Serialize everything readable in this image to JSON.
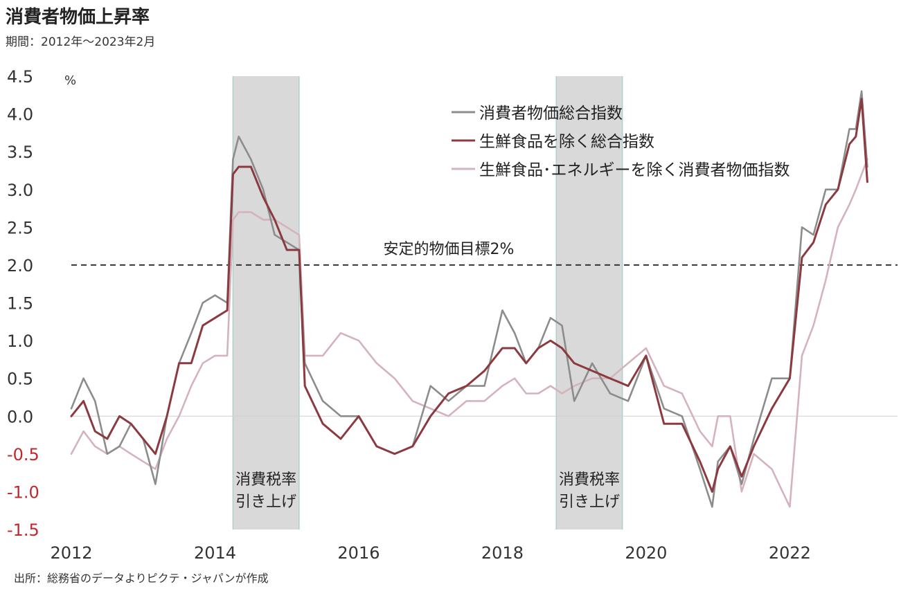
{
  "title": "消費者物価上昇率",
  "subtitle": "期間：2012年～2023年2月",
  "source": "出所：総務省のデータよりピクテ・ジャパンが作成",
  "chart_data": {
    "type": "line",
    "yunit": "%",
    "ylim": [
      -1.5,
      4.5
    ],
    "yticks": [
      "4.5",
      "4.0",
      "3.5",
      "3.0",
      "2.5",
      "2.0",
      "1.5",
      "1.0",
      "0.5",
      "0.0",
      "-0.5",
      "-1.0",
      "-1.5"
    ],
    "xlim": [
      2012,
      2023.5
    ],
    "xticks": [
      "2012",
      "2014",
      "2016",
      "2018",
      "2020",
      "2022"
    ],
    "grid": false,
    "legend_position": "top-right",
    "target_line": {
      "value": 2.0,
      "label": "安定的物価目標2%"
    },
    "shaded_periods": [
      {
        "start": 2014.25,
        "end": 2015.17,
        "label_line1": "消費税率",
        "label_line2": "引き上げ"
      },
      {
        "start": 2018.75,
        "end": 2019.67,
        "label_line1": "消費税率",
        "label_line2": "引き上げ"
      }
    ],
    "colors": {
      "headline": "#8c8c8c",
      "core": "#8b3a3f",
      "core_core": "#d4b3bd",
      "negative_tick": "#c0282d",
      "shade": "#d9d9d9",
      "shade_edge": "#aecfcf"
    },
    "series": [
      {
        "name": "消費者物価総合指数",
        "key": "headline",
        "x": [
          2012.0,
          2012.17,
          2012.33,
          2012.5,
          2012.67,
          2012.83,
          2013.0,
          2013.17,
          2013.33,
          2013.5,
          2013.67,
          2013.83,
          2014.0,
          2014.17,
          2014.25,
          2014.33,
          2014.5,
          2014.67,
          2014.83,
          2015.0,
          2015.17,
          2015.25,
          2015.5,
          2015.75,
          2016.0,
          2016.25,
          2016.5,
          2016.75,
          2017.0,
          2017.25,
          2017.5,
          2017.75,
          2018.0,
          2018.17,
          2018.33,
          2018.5,
          2018.67,
          2018.83,
          2019.0,
          2019.25,
          2019.5,
          2019.75,
          2020.0,
          2020.25,
          2020.5,
          2020.75,
          2020.92,
          2021.0,
          2021.17,
          2021.33,
          2021.5,
          2021.75,
          2022.0,
          2022.17,
          2022.33,
          2022.5,
          2022.67,
          2022.83,
          2022.92,
          2023.0,
          2023.08
        ],
        "values": [
          0.1,
          0.5,
          0.2,
          -0.5,
          -0.4,
          -0.1,
          -0.3,
          -0.9,
          0.0,
          0.7,
          1.1,
          1.5,
          1.6,
          1.5,
          3.4,
          3.7,
          3.4,
          3.0,
          2.4,
          2.3,
          2.2,
          0.7,
          0.2,
          0.0,
          0.0,
          -0.4,
          -0.5,
          -0.4,
          0.4,
          0.2,
          0.4,
          0.4,
          1.4,
          1.1,
          0.7,
          0.9,
          1.3,
          1.2,
          0.2,
          0.7,
          0.3,
          0.2,
          0.8,
          0.1,
          0.0,
          -0.7,
          -1.2,
          -0.6,
          -0.4,
          -0.9,
          -0.3,
          0.5,
          0.5,
          2.5,
          2.4,
          3.0,
          3.0,
          3.8,
          3.8,
          4.3,
          3.3
        ]
      },
      {
        "name": "生鮮食品を除く総合指数",
        "key": "core",
        "x": [
          2012.0,
          2012.17,
          2012.33,
          2012.5,
          2012.67,
          2012.83,
          2013.0,
          2013.17,
          2013.33,
          2013.5,
          2013.67,
          2013.83,
          2014.0,
          2014.17,
          2014.25,
          2014.33,
          2014.5,
          2014.67,
          2014.83,
          2015.0,
          2015.17,
          2015.25,
          2015.5,
          2015.75,
          2016.0,
          2016.25,
          2016.5,
          2016.75,
          2017.0,
          2017.25,
          2017.5,
          2017.75,
          2018.0,
          2018.17,
          2018.33,
          2018.5,
          2018.67,
          2018.83,
          2019.0,
          2019.25,
          2019.5,
          2019.75,
          2020.0,
          2020.25,
          2020.5,
          2020.75,
          2020.92,
          2021.0,
          2021.17,
          2021.33,
          2021.5,
          2021.75,
          2022.0,
          2022.17,
          2022.33,
          2022.5,
          2022.67,
          2022.83,
          2022.92,
          2023.0,
          2023.08
        ],
        "values": [
          0.0,
          0.2,
          -0.2,
          -0.3,
          0.0,
          -0.1,
          -0.3,
          -0.5,
          0.0,
          0.7,
          0.7,
          1.2,
          1.3,
          1.4,
          3.2,
          3.3,
          3.3,
          2.9,
          2.6,
          2.2,
          2.2,
          0.4,
          -0.1,
          -0.3,
          0.0,
          -0.4,
          -0.5,
          -0.4,
          0.0,
          0.3,
          0.4,
          0.6,
          0.9,
          0.9,
          0.7,
          0.9,
          1.0,
          0.9,
          0.7,
          0.6,
          0.5,
          0.4,
          0.8,
          -0.1,
          -0.1,
          -0.6,
          -1.0,
          -0.7,
          -0.4,
          -0.8,
          -0.4,
          0.1,
          0.5,
          2.1,
          2.3,
          2.8,
          3.0,
          3.6,
          3.7,
          4.2,
          3.1
        ]
      },
      {
        "name": "生鮮食品･エネルギーを除く消費者物価指数",
        "key": "core_core",
        "x": [
          2012.0,
          2012.17,
          2012.33,
          2012.5,
          2012.67,
          2012.83,
          2013.0,
          2013.17,
          2013.33,
          2013.5,
          2013.67,
          2013.83,
          2014.0,
          2014.17,
          2014.25,
          2014.33,
          2014.5,
          2014.67,
          2014.83,
          2015.0,
          2015.17,
          2015.25,
          2015.5,
          2015.75,
          2016.0,
          2016.25,
          2016.5,
          2016.75,
          2017.0,
          2017.25,
          2017.5,
          2017.75,
          2018.0,
          2018.17,
          2018.33,
          2018.5,
          2018.67,
          2018.83,
          2019.0,
          2019.25,
          2019.5,
          2019.75,
          2020.0,
          2020.25,
          2020.5,
          2020.75,
          2020.92,
          2021.0,
          2021.17,
          2021.33,
          2021.5,
          2021.75,
          2022.0,
          2022.17,
          2022.33,
          2022.5,
          2022.67,
          2022.83,
          2022.92,
          2023.0,
          2023.08
        ],
        "values": [
          -0.5,
          -0.2,
          -0.4,
          -0.5,
          -0.4,
          -0.5,
          -0.6,
          -0.7,
          -0.3,
          0.0,
          0.4,
          0.7,
          0.8,
          0.8,
          2.6,
          2.7,
          2.7,
          2.6,
          2.6,
          2.5,
          2.4,
          0.8,
          0.8,
          1.1,
          1.0,
          0.7,
          0.5,
          0.2,
          0.1,
          0.0,
          0.2,
          0.2,
          0.4,
          0.5,
          0.3,
          0.3,
          0.4,
          0.3,
          0.4,
          0.5,
          0.5,
          0.7,
          0.9,
          0.4,
          0.3,
          -0.2,
          -0.4,
          0.0,
          0.0,
          -1.0,
          -0.5,
          -0.7,
          -1.2,
          0.8,
          1.2,
          1.8,
          2.5,
          2.8,
          3.0,
          3.2,
          3.4
        ]
      }
    ]
  }
}
